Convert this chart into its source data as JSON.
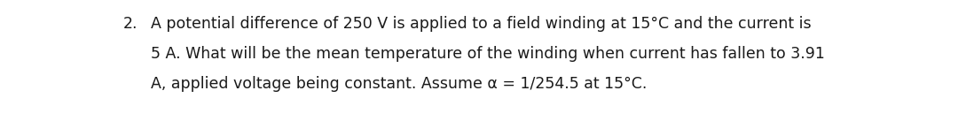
{
  "number": "2.",
  "line1": "A potential difference of 250 V is applied to a field winding at 15°C and the current is",
  "line2": "5 A. What will be the mean temperature of the winding when current has fallen to 3.91",
  "line3": "A, applied voltage being constant. Assume α = 1/254.5 at 15°C.",
  "bg_color": "#ffffff",
  "text_color": "#1a1a1a",
  "fontsize": 12.5,
  "fig_width": 10.8,
  "fig_height": 1.37,
  "dpi": 100
}
